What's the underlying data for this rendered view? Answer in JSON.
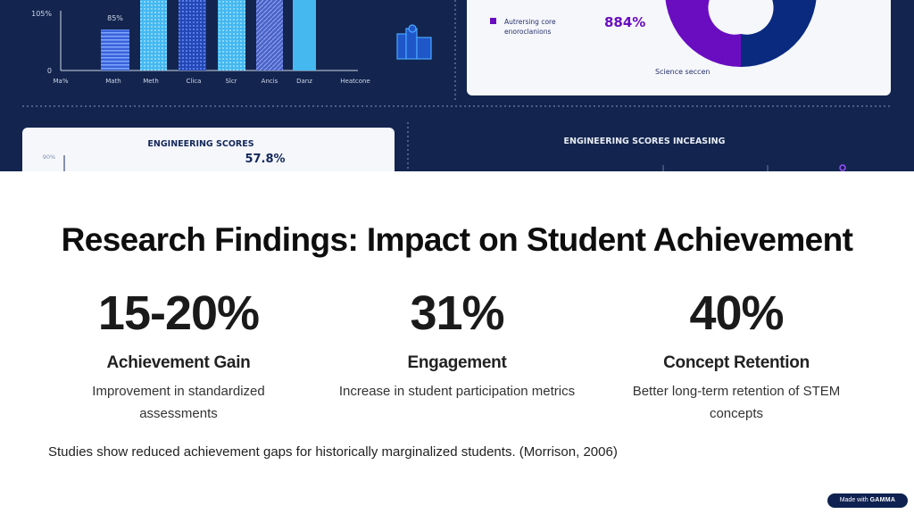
{
  "hero_image": {
    "bar_chart": {
      "y_ticks": [
        "105%",
        "0"
      ],
      "bar_label": "85%",
      "x_labels": [
        "Ma%",
        "Math",
        "Meth",
        "Clica",
        "Slcr",
        "Ancis",
        "Danz",
        "Heatcone"
      ]
    },
    "donut_card": {
      "legend_text_line1": "Autrersing core",
      "legend_text_line2": "enoroclanions",
      "percent": "884%",
      "callout": "Science seccen"
    },
    "engineering_card": {
      "title": "ENGINEERING SCORES",
      "value": "57.8%",
      "y_tick": "90%"
    },
    "right_heading": "ENGINEERING SCORES INCEASING",
    "colors": {
      "navy": "#13254f",
      "purple": "#6a0dc0",
      "blue": "#0a2a80",
      "light_blue": "#45b8f0"
    }
  },
  "title": "Research Findings: Impact on Student Achievement",
  "stats": [
    {
      "value": "15-20%",
      "label": "Achievement Gain",
      "description": "Improvement in standardized assessments"
    },
    {
      "value": "31%",
      "label": "Engagement",
      "description": "Increase in student participation metrics"
    },
    {
      "value": "40%",
      "label": "Concept Retention",
      "description": "Better long-term retention of STEM concepts"
    }
  ],
  "footnote": "Studies show reduced achievement gaps for historically marginalized students. (Morrison, 2006)",
  "badge": {
    "prefix": "Made with",
    "brand": "GAMMA"
  }
}
